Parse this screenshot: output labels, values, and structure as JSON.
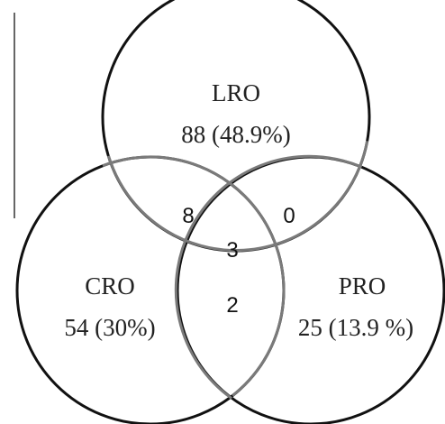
{
  "colors": {
    "outline": "#111111",
    "inner_arc": "#7a7a7a",
    "text": "#222222"
  },
  "sets": [
    {
      "id": "lro",
      "label": "LRO",
      "count_text": "88 (48.9%)"
    },
    {
      "id": "cro",
      "label": "CRO",
      "count_text": "54 (30%)"
    },
    {
      "id": "pro",
      "label": "PRO",
      "count_text": "25 (13.9 %)"
    }
  ],
  "overlaps": {
    "lro_cro": "8",
    "lro_pro": "0",
    "lro_cro_pro": "3",
    "cro_pro": "2"
  }
}
